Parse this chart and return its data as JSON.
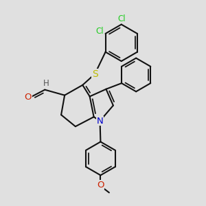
{
  "bg_color": "#e0e0e0",
  "bond_color": "#111111",
  "bond_lw": 1.5,
  "S_color": "#bbbb00",
  "N_color": "#0000cc",
  "O_color": "#cc2200",
  "Cl_color": "#22cc22",
  "label_fontsize": 8.5,
  "fig_w": 3.0,
  "fig_h": 3.0,
  "dpi": 100,
  "xlim": [
    0,
    10
  ],
  "ylim": [
    0,
    10
  ]
}
